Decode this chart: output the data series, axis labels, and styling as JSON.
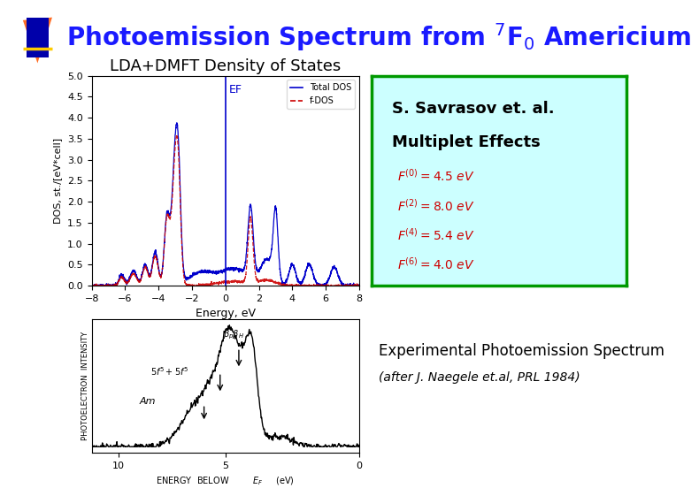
{
  "title": "Photoemission Spectrum from $^7$F$_0$ Americium",
  "title_color": "#1a1aff",
  "title_fontsize": 20,
  "dos_subtitle": "LDA+DMFT Density of States",
  "dos_subtitle_fontsize": 13,
  "savrasov_line1": "S. Savrasov et. al.",
  "savrasov_line2": "Multiplet Effects",
  "savrasov_fontsize": 13,
  "slater_integrals": [
    "$F^{(0)}=4.5\\ eV$",
    "$F^{(2)}=8.0\\ eV$",
    "$F^{(4)}=5.4\\ eV$",
    "$F^{(6)}=4.0\\ eV$"
  ],
  "slater_color": "#cc0000",
  "slater_fontsize": 10,
  "ylabel_dos": "DOS, st./[eV*cell]",
  "xlabel_dos": "Energy, eV",
  "ylim_dos": [
    0.0,
    5.0
  ],
  "xlim_dos": [
    -8,
    8
  ],
  "yticks_dos": [
    0.0,
    0.5,
    1.0,
    1.5,
    2.0,
    2.5,
    3.0,
    3.5,
    4.0,
    4.5,
    5.0
  ],
  "xticks_dos": [
    -8,
    -6,
    -4,
    -2,
    0,
    2,
    4,
    6,
    8
  ],
  "total_dos_color": "#0000cc",
  "f_dos_color": "#cc0000",
  "total_dos_label": "Total DOS",
  "f_dos_label": "f-DOS",
  "ef_label": "EF",
  "ef_label_color": "#0000cc",
  "box_face_color": "#ccffff",
  "box_edge_color": "#009900",
  "exp_text": "Experimental Photoemission Spectrum",
  "exp_subtext": "(after J. Naegele et.al, PRL 1984)",
  "exp_fontsize": 12,
  "background_color": "#ffffff",
  "icon_blue": "#0000aa",
  "icon_red": "#ff5500",
  "icon_yellow": "#ffcc00"
}
